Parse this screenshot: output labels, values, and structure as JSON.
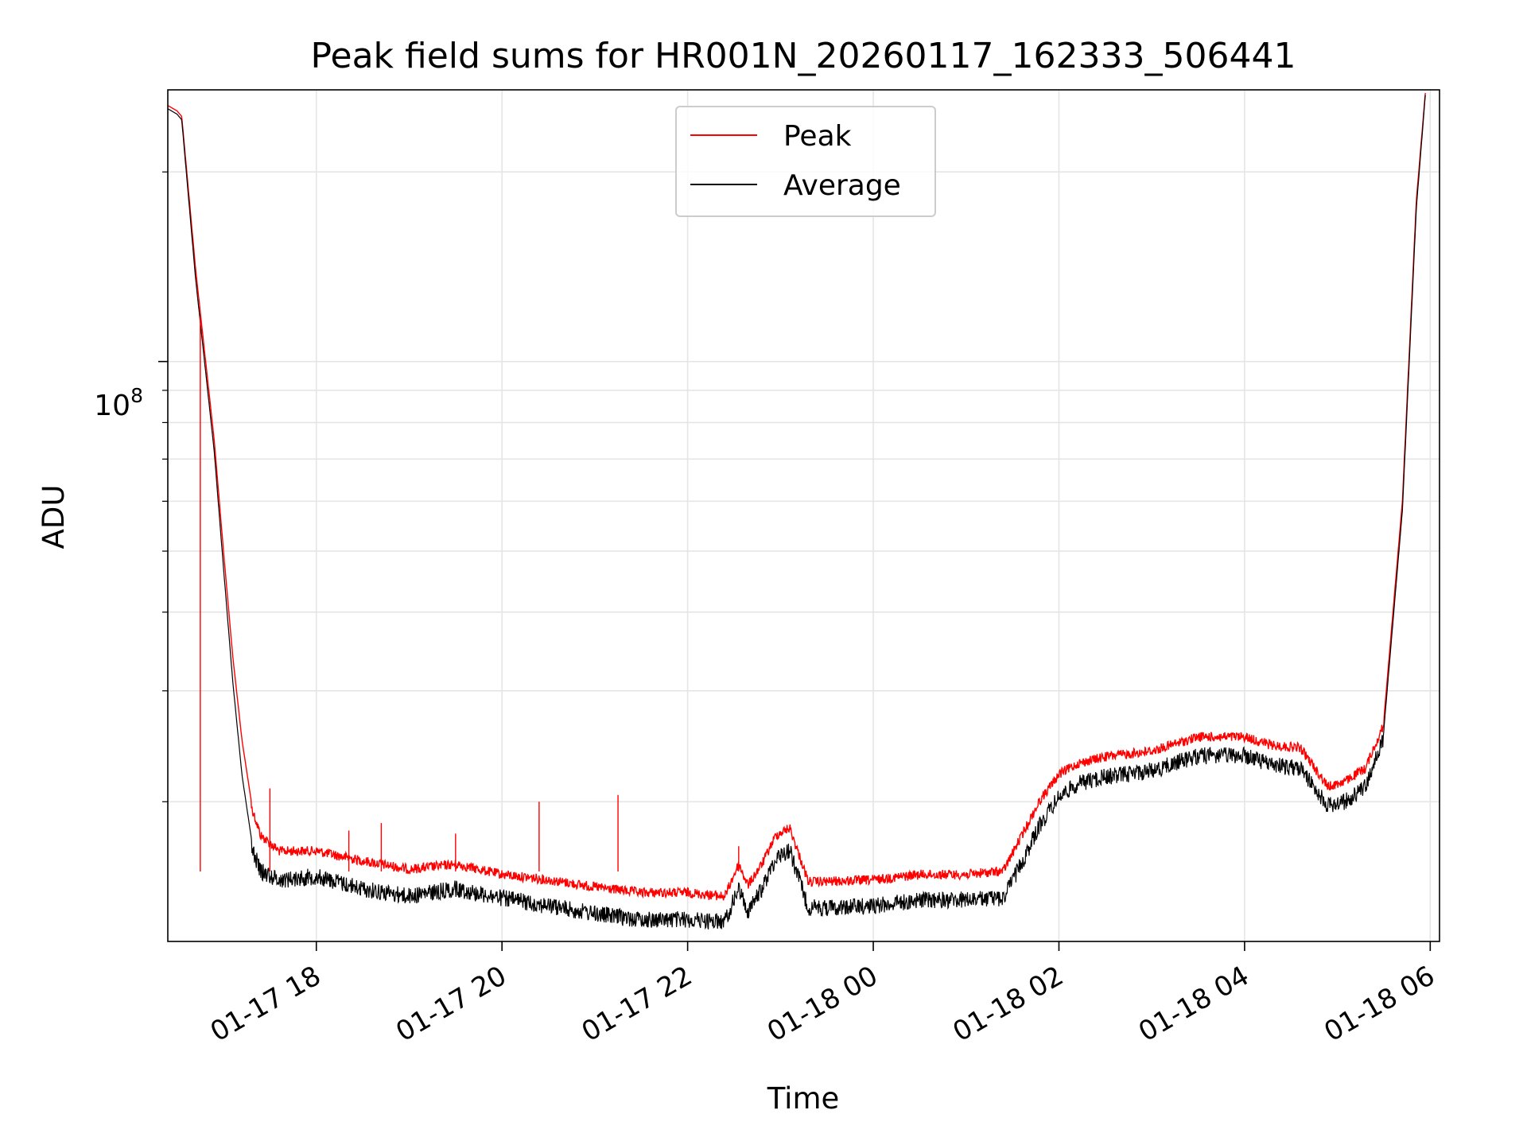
{
  "chart_data": {
    "type": "line",
    "title": "Peak field sums for HR001N_20260117_162333_506441",
    "xlabel": "Time",
    "ylabel": "ADU",
    "yscale": "log",
    "y_major_tick": {
      "value": 100000000,
      "label_base": "10",
      "label_exp": "8"
    },
    "ylim": [
      12000000,
      270000000
    ],
    "xlim_hours": [
      16.4,
      30.1
    ],
    "x_ticks": [
      {
        "hour": 18,
        "label": "01-17 18"
      },
      {
        "hour": 20,
        "label": "01-17 20"
      },
      {
        "hour": 22,
        "label": "01-17 22"
      },
      {
        "hour": 24,
        "label": "01-18 00"
      },
      {
        "hour": 26,
        "label": "01-18 02"
      },
      {
        "hour": 28,
        "label": "01-18 04"
      },
      {
        "hour": 30,
        "label": "01-18 06"
      }
    ],
    "y_minor_ticks": [
      20000000,
      30000000,
      40000000,
      50000000,
      60000000,
      70000000,
      80000000,
      90000000,
      200000000
    ],
    "grid": true,
    "legend_position": "upper-center",
    "series": [
      {
        "name": "Peak",
        "color": "#ff0000",
        "hours": [
          16.4,
          16.5,
          16.55,
          16.7,
          16.9,
          17.0,
          17.1,
          17.2,
          17.3,
          17.4,
          17.6,
          18.0,
          18.5,
          19.0,
          19.5,
          20.0,
          20.5,
          21.0,
          21.5,
          22.0,
          22.4,
          22.55,
          22.65,
          22.8,
          22.95,
          23.1,
          23.3,
          23.5,
          24.0,
          24.5,
          25.0,
          25.4,
          25.6,
          25.8,
          26.0,
          26.2,
          26.5,
          27.0,
          27.5,
          28.0,
          28.3,
          28.6,
          28.9,
          29.1,
          29.3,
          29.5,
          29.7,
          29.85,
          29.95
        ],
        "values": [
          255000000,
          250000000,
          245000000,
          140000000,
          75000000,
          50000000,
          34000000,
          25000000,
          20000000,
          18000000,
          17000000,
          17000000,
          16400000,
          15900000,
          16200000,
          15600000,
          15300000,
          14900000,
          14600000,
          14600000,
          14400000,
          16200000,
          15000000,
          16200000,
          18000000,
          18500000,
          15200000,
          15200000,
          15300000,
          15600000,
          15600000,
          15800000,
          18000000,
          20500000,
          22500000,
          23400000,
          24000000,
          24500000,
          25800000,
          25800000,
          25000000,
          24800000,
          21500000,
          22000000,
          23000000,
          27000000,
          60000000,
          180000000,
          270000000
        ]
      },
      {
        "name": "Average",
        "color": "#000000",
        "hours": [
          16.4,
          16.5,
          16.55,
          16.7,
          16.9,
          17.0,
          17.1,
          17.2,
          17.3,
          17.4,
          17.6,
          18.0,
          18.5,
          19.0,
          19.5,
          20.0,
          20.5,
          21.0,
          21.5,
          22.0,
          22.4,
          22.55,
          22.65,
          22.8,
          22.95,
          23.1,
          23.3,
          23.5,
          24.0,
          24.5,
          25.0,
          25.4,
          25.6,
          25.8,
          26.0,
          26.2,
          26.5,
          27.0,
          27.5,
          28.0,
          28.3,
          28.6,
          28.9,
          29.1,
          29.3,
          29.5,
          29.7,
          29.85,
          29.95
        ],
        "values": [
          252000000,
          247000000,
          242000000,
          135000000,
          72000000,
          47000000,
          31000000,
          22000000,
          17500000,
          16000000,
          15500000,
          15700000,
          15000000,
          14600000,
          15000000,
          14500000,
          14100000,
          13700000,
          13400000,
          13400000,
          13300000,
          15000000,
          13800000,
          15000000,
          16800000,
          17300000,
          14000000,
          14000000,
          14100000,
          14400000,
          14400000,
          14500000,
          16500000,
          19000000,
          21000000,
          22000000,
          22600000,
          23100000,
          24400000,
          24400000,
          23600000,
          23300000,
          20300000,
          20700000,
          21800000,
          26000000,
          58000000,
          175000000,
          268000000
        ]
      }
    ]
  }
}
